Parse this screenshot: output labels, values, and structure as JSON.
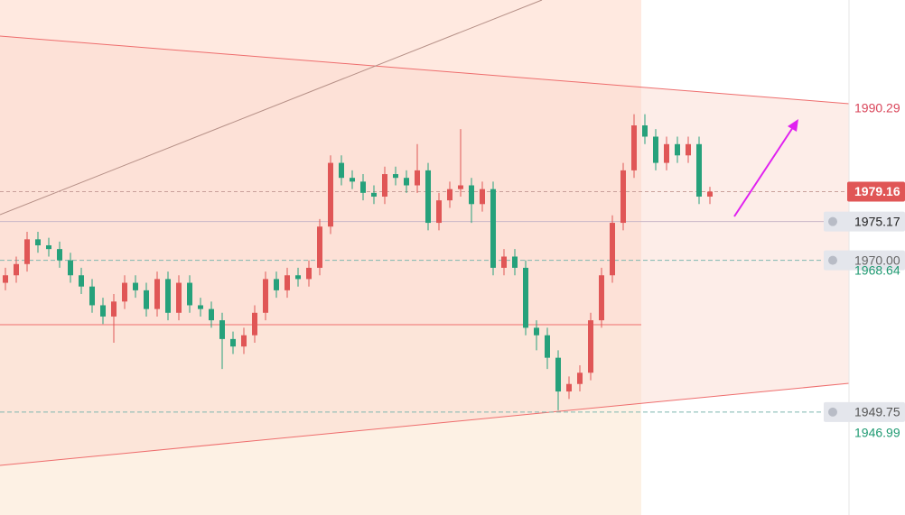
{
  "chart_data": {
    "type": "candlestick",
    "up_color": "#e05656",
    "down_color": "#26a17b",
    "ylim": [
      1936.02,
      2004.73
    ],
    "open": [
      1967.0,
      1968.0,
      1969.5,
      1972.8,
      1972.0,
      1971.5,
      1970.0,
      1968.0,
      1966.5,
      1964.0,
      1962.5,
      1964.5,
      1967.0,
      1966.0,
      1963.5,
      1967.5,
      1963.0,
      1967.0,
      1964.0,
      1963.5,
      1962.0,
      1959.5,
      1958.5,
      1960.0,
      1963.0,
      1967.5,
      1966.0,
      1968.0,
      1967.5,
      1969.0,
      1974.5,
      1983.0,
      1981.0,
      1980.5,
      1979.0,
      1978.5,
      1981.5,
      1981.0,
      1980.0,
      1982.0,
      1975.0,
      1978.0,
      1979.5,
      1980.0,
      1977.5,
      1979.5,
      1969.0,
      1970.5,
      1969.0,
      1961.0,
      1960.0,
      1957.0,
      1952.5,
      1953.5,
      1955.0,
      1962.0,
      1968.0,
      1975.0,
      1982.0,
      1988.0,
      1986.5,
      1983.0,
      1985.5,
      1984.0,
      1985.5,
      1978.5
    ],
    "high": [
      1969.0,
      1970.5,
      1973.8,
      1973.8,
      1973.0,
      1972.5,
      1971.0,
      1969.0,
      1967.5,
      1965.0,
      1965.5,
      1968.0,
      1968.0,
      1967.0,
      1968.5,
      1968.5,
      1968.0,
      1968.0,
      1965.0,
      1964.5,
      1963.0,
      1960.5,
      1961.0,
      1964.0,
      1968.5,
      1968.5,
      1969.0,
      1969.0,
      1970.0,
      1975.5,
      1984.0,
      1984.0,
      1982.0,
      1981.5,
      1980.0,
      1982.5,
      1982.5,
      1982.0,
      1985.5,
      1983.0,
      1979.0,
      1980.5,
      1987.5,
      1981.0,
      1980.5,
      1980.5,
      1971.5,
      1971.5,
      1970.0,
      1962.0,
      1961.0,
      1958.0,
      1954.5,
      1956.0,
      1963.0,
      1969.0,
      1976.0,
      1983.0,
      1989.5,
      1989.5,
      1987.5,
      1986.5,
      1986.5,
      1986.5,
      1986.5,
      1979.8
    ],
    "low": [
      1966.0,
      1967.0,
      1968.5,
      1971.0,
      1970.5,
      1969.0,
      1967.0,
      1965.5,
      1963.0,
      1961.5,
      1959.0,
      1963.5,
      1965.0,
      1962.5,
      1962.5,
      1962.0,
      1962.0,
      1963.0,
      1962.5,
      1961.0,
      1955.5,
      1957.5,
      1957.5,
      1959.0,
      1962.0,
      1965.0,
      1965.0,
      1966.5,
      1966.5,
      1968.0,
      1973.5,
      1980.0,
      1979.5,
      1978.0,
      1977.5,
      1977.5,
      1980.0,
      1979.0,
      1979.0,
      1974.0,
      1974.0,
      1977.0,
      1978.5,
      1975.0,
      1976.5,
      1968.0,
      1968.0,
      1968.0,
      1960.0,
      1958.0,
      1955.5,
      1950.0,
      1951.5,
      1952.5,
      1954.0,
      1961.0,
      1967.0,
      1974.0,
      1981.0,
      1985.5,
      1982.0,
      1982.0,
      1983.0,
      1983.0,
      1977.5,
      1977.5
    ],
    "close": [
      1968.0,
      1969.5,
      1972.8,
      1972.0,
      1971.5,
      1970.0,
      1968.0,
      1966.5,
      1964.0,
      1962.5,
      1964.5,
      1967.0,
      1966.0,
      1963.5,
      1967.5,
      1963.0,
      1967.0,
      1964.0,
      1963.5,
      1962.0,
      1959.5,
      1958.5,
      1960.0,
      1963.0,
      1967.5,
      1966.0,
      1968.0,
      1967.5,
      1969.0,
      1974.5,
      1983.0,
      1981.0,
      1980.5,
      1979.0,
      1978.5,
      1981.5,
      1981.0,
      1980.0,
      1982.0,
      1975.0,
      1978.0,
      1979.5,
      1980.0,
      1977.5,
      1979.5,
      1969.0,
      1970.5,
      1969.0,
      1961.0,
      1960.0,
      1957.0,
      1952.5,
      1953.5,
      1955.0,
      1962.0,
      1968.0,
      1975.0,
      1982.0,
      1988.0,
      1986.5,
      1983.0,
      1985.5,
      1984.0,
      1985.5,
      1978.5,
      1979.16
    ],
    "price_labels": [
      {
        "value": 1990.29,
        "label": "1990.29",
        "style": "text",
        "color": "#d9455a"
      },
      {
        "value": 1979.16,
        "label": "1979.16",
        "style": "current",
        "color": "#e05656"
      },
      {
        "value": 1975.17,
        "label": "1975.17",
        "style": "alert",
        "color": "#222222"
      },
      {
        "value": 1970.0,
        "label": "1970.00",
        "style": "alert",
        "color": "#666666"
      },
      {
        "value": 1968.64,
        "label": "1968.64",
        "style": "text",
        "color": "#1f9a72"
      },
      {
        "value": 1949.75,
        "label": "1949.75",
        "style": "alert",
        "color": "#555555"
      },
      {
        "value": 1946.99,
        "label": "1946.99",
        "style": "text",
        "color": "#1f9a72"
      }
    ]
  }
}
